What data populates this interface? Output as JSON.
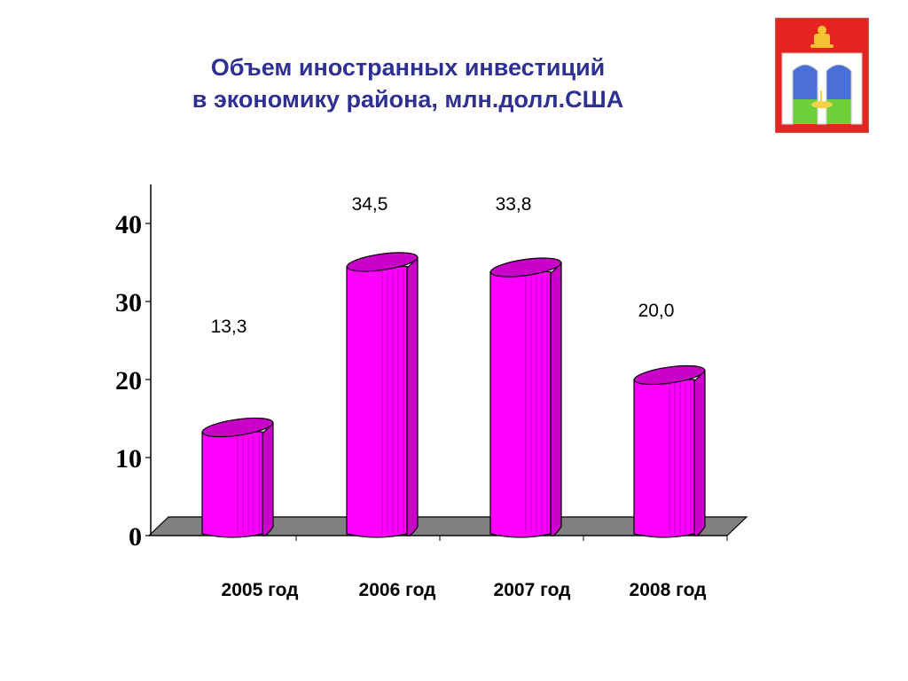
{
  "slide": {
    "title_line1": "Объем иностранных инвестиций",
    "title_line2": "в экономику района, млн.долл.США",
    "emblem": "coat-of-arms-icon"
  },
  "colors": {
    "title": "#2e3192",
    "bar_front": "#ff00ff",
    "bar_top": "#c800c8",
    "floor": "#808080"
  },
  "chart_data": {
    "type": "bar",
    "title": "Объем иностранных инвестиций в экономику района, млн.долл.США",
    "categories": [
      "2005 год",
      "2006 год",
      "2007 год",
      "2008 год"
    ],
    "values": [
      13.3,
      34.5,
      33.8,
      20.0
    ],
    "value_labels": [
      "13,3",
      "34,5",
      "33,8",
      "20,0"
    ],
    "yticks": [
      0,
      10,
      20,
      30,
      40
    ],
    "ylim": [
      0,
      40
    ],
    "xlabel": "",
    "ylabel": "",
    "grid": false,
    "legend": "none"
  }
}
